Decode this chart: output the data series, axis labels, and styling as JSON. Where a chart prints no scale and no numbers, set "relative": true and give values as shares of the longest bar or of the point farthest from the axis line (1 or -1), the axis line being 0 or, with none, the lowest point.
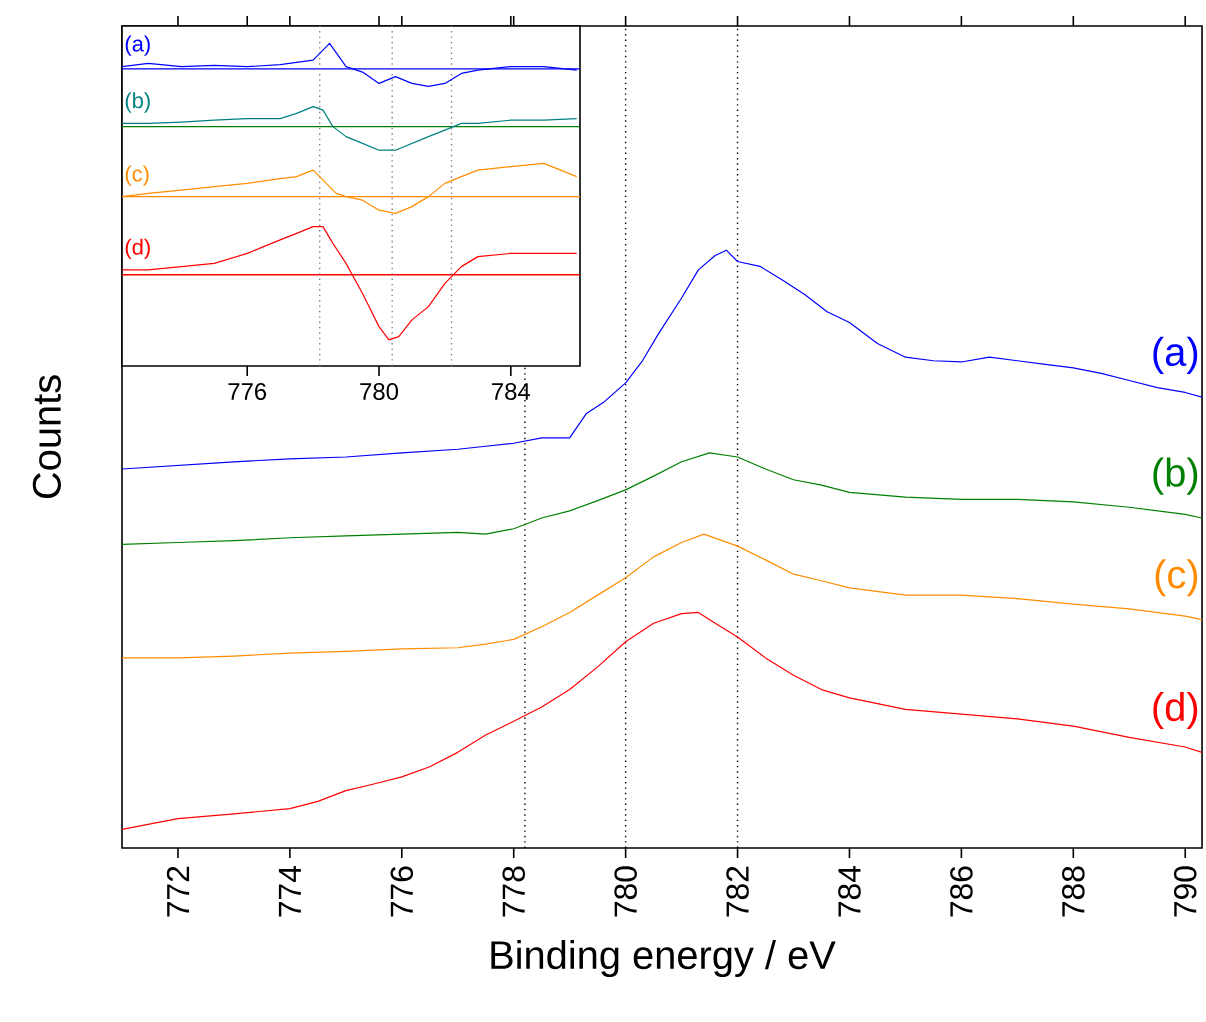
{
  "chart_data": [
    {
      "type": "line",
      "relative": true,
      "xlabel": "Binding energy / eV",
      "ylabel": "Counts",
      "xlim": [
        771,
        790.3
      ],
      "xticks": [
        772,
        774,
        776,
        778,
        780,
        782,
        784,
        786,
        788,
        790
      ],
      "series": [
        {
          "name": "(a)",
          "color": "#0000ff",
          "x": [
            771,
            772,
            773,
            774,
            775,
            776,
            777,
            777.5,
            778,
            778.5,
            779,
            779.3,
            779.6,
            780,
            780.3,
            780.6,
            781,
            781.3,
            781.6,
            781.8,
            782,
            782.4,
            782.8,
            783.2,
            783.6,
            784,
            784.5,
            785,
            785.5,
            786,
            786.5,
            787,
            787.5,
            788,
            788.5,
            789,
            789.5,
            790,
            790.3
          ],
          "values": [
            0.634,
            0.64,
            0.646,
            0.651,
            0.654,
            0.661,
            0.667,
            0.672,
            0.677,
            0.686,
            0.686,
            0.727,
            0.745,
            0.778,
            0.815,
            0.862,
            0.92,
            0.967,
            0.991,
            1.0,
            0.981,
            0.973,
            0.95,
            0.926,
            0.897,
            0.879,
            0.844,
            0.821,
            0.815,
            0.813,
            0.821,
            0.815,
            0.809,
            0.803,
            0.794,
            0.782,
            0.77,
            0.762,
            0.754
          ]
        },
        {
          "name": "(b)",
          "color": "#008000",
          "x": [
            771,
            772,
            773,
            774,
            775,
            776,
            777,
            777.5,
            778,
            778.5,
            779,
            779.5,
            780,
            780.5,
            781,
            781.5,
            782,
            782.5,
            783,
            783.5,
            784,
            785,
            786,
            787,
            788,
            789,
            790,
            790.3
          ],
          "values": [
            0.508,
            0.511,
            0.514,
            0.519,
            0.522,
            0.525,
            0.528,
            0.525,
            0.534,
            0.552,
            0.564,
            0.581,
            0.599,
            0.622,
            0.646,
            0.661,
            0.654,
            0.634,
            0.616,
            0.607,
            0.595,
            0.587,
            0.583,
            0.583,
            0.579,
            0.57,
            0.558,
            0.552
          ]
        },
        {
          "name": "(c)",
          "color": "#ff8c00",
          "x": [
            771,
            772,
            773,
            774,
            775,
            776,
            777,
            777.5,
            778,
            778.5,
            779,
            779.5,
            780,
            780.5,
            781,
            781.4,
            782,
            782.5,
            783,
            783.5,
            784,
            785,
            786,
            787,
            788,
            789,
            790,
            790.3
          ],
          "values": [
            0.318,
            0.318,
            0.321,
            0.326,
            0.329,
            0.333,
            0.335,
            0.341,
            0.349,
            0.37,
            0.394,
            0.423,
            0.452,
            0.487,
            0.511,
            0.525,
            0.505,
            0.482,
            0.458,
            0.447,
            0.435,
            0.423,
            0.423,
            0.417,
            0.408,
            0.4,
            0.388,
            0.382
          ]
        },
        {
          "name": "(d)",
          "color": "#ff0000",
          "x": [
            771,
            772,
            773,
            774,
            774.5,
            775,
            775.5,
            776,
            776.5,
            777,
            777.5,
            778,
            778.5,
            779,
            779.5,
            780,
            780.5,
            781,
            781.3,
            781.6,
            782,
            782.5,
            783,
            783.5,
            784,
            785,
            786,
            787,
            788,
            789,
            790,
            790.3
          ],
          "values": [
            0.031,
            0.049,
            0.057,
            0.066,
            0.078,
            0.096,
            0.107,
            0.119,
            0.136,
            0.16,
            0.189,
            0.212,
            0.236,
            0.265,
            0.303,
            0.345,
            0.376,
            0.392,
            0.394,
            0.376,
            0.353,
            0.318,
            0.289,
            0.265,
            0.251,
            0.232,
            0.224,
            0.216,
            0.204,
            0.185,
            0.169,
            0.16
          ]
        }
      ],
      "ref_lines": [
        {
          "axis": "x",
          "value": 778.2,
          "color": "#000000",
          "line_style": "dotted"
        },
        {
          "axis": "x",
          "value": 780,
          "color": "#000000",
          "line_style": "dotted"
        },
        {
          "axis": "x",
          "value": 782,
          "color": "#000000",
          "line_style": "dotted"
        }
      ]
    },
    {
      "type": "line",
      "relative": true,
      "xlim": [
        772.2,
        786.1
      ],
      "xticks": [
        776,
        780,
        784
      ],
      "series": [
        {
          "name": "(a)",
          "color": "#0000ff",
          "x": [
            772.2,
            773,
            774,
            775,
            776,
            777,
            778,
            778.5,
            779,
            779.5,
            780,
            780.5,
            781,
            781.5,
            782,
            782.5,
            783,
            784,
            785,
            786
          ],
          "values": [
            0.928,
            0.938,
            0.928,
            0.932,
            0.928,
            0.934,
            0.948,
            1.0,
            0.928,
            0.911,
            0.876,
            0.897,
            0.876,
            0.867,
            0.876,
            0.907,
            0.917,
            0.928,
            0.928,
            0.917
          ]
        },
        {
          "name": "(b)",
          "color": "#008080",
          "x": [
            772.2,
            773,
            774,
            775,
            776,
            777,
            777.5,
            778,
            778.3,
            778.6,
            779,
            779.5,
            780,
            780.5,
            781,
            781.5,
            782,
            782.5,
            783,
            784,
            785,
            786
          ],
          "values": [
            0.752,
            0.752,
            0.756,
            0.762,
            0.767,
            0.767,
            0.783,
            0.804,
            0.793,
            0.742,
            0.711,
            0.69,
            0.669,
            0.669,
            0.69,
            0.711,
            0.731,
            0.752,
            0.752,
            0.762,
            0.762,
            0.767
          ]
        },
        {
          "name": "(c)",
          "color": "#ff8c00",
          "x": [
            772.2,
            773,
            774,
            775,
            776,
            777,
            777.5,
            778,
            778.3,
            778.7,
            779,
            779.5,
            780,
            780.5,
            781,
            781.5,
            782,
            782.5,
            783,
            784,
            785,
            786
          ],
          "values": [
            0.525,
            0.535,
            0.545,
            0.556,
            0.566,
            0.581,
            0.587,
            0.607,
            0.576,
            0.535,
            0.525,
            0.514,
            0.483,
            0.473,
            0.494,
            0.525,
            0.566,
            0.587,
            0.607,
            0.618,
            0.628,
            0.587
          ]
        },
        {
          "name": "(d)",
          "color": "#ff0000",
          "x": [
            772.2,
            773,
            774,
            775,
            776,
            776.5,
            777,
            777.5,
            778,
            778.3,
            778.6,
            779,
            779.5,
            780,
            780.3,
            780.6,
            781,
            781.5,
            782,
            782.5,
            783,
            784,
            785,
            786
          ],
          "values": [
            0.298,
            0.298,
            0.308,
            0.318,
            0.349,
            0.37,
            0.391,
            0.411,
            0.432,
            0.432,
            0.38,
            0.318,
            0.225,
            0.122,
            0.081,
            0.091,
            0.143,
            0.184,
            0.256,
            0.308,
            0.339,
            0.349,
            0.349,
            0.349
          ]
        }
      ],
      "ref_lines": [
        {
          "axis": "y",
          "value": 0.921,
          "color": "#0000ff",
          "line_style": "solid"
        },
        {
          "axis": "y",
          "value": 0.742,
          "color": "#008000",
          "line_style": "solid"
        },
        {
          "axis": "y",
          "value": 0.525,
          "color": "#ff8c00",
          "line_style": "solid"
        },
        {
          "axis": "y",
          "value": 0.283,
          "color": "#ff0000",
          "line_style": "solid"
        },
        {
          "axis": "x",
          "value": 778.2,
          "color": "#808080",
          "line_style": "dotted"
        },
        {
          "axis": "x",
          "value": 780.4,
          "color": "#808080",
          "line_style": "dotted"
        },
        {
          "axis": "x",
          "value": 782.2,
          "color": "#808080",
          "line_style": "dotted"
        }
      ]
    }
  ]
}
